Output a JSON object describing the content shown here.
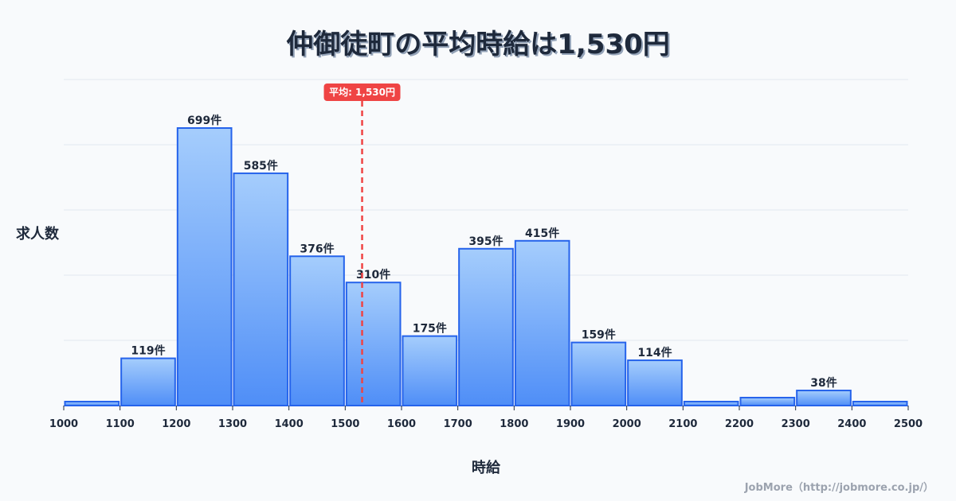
{
  "header": {
    "title": "仲御徒町の平均時給は1,530円"
  },
  "axes": {
    "ylabel": "求人数",
    "xlabel": "時給"
  },
  "average": {
    "label": "平均: 1,530円",
    "value": 1530,
    "color": "#ef4444"
  },
  "credit": "JobMore（http://jobmore.co.jp/）",
  "colors": {
    "bar_top": "#a5cdfc",
    "bar_bottom": "#4f8ef7",
    "bar_stroke": "#2563eb",
    "grid": "#e2e8f0",
    "text": "#1e293b"
  },
  "chart_data": {
    "type": "bar",
    "title": "仲御徒町の平均時給は1,530円",
    "xlabel": "時給",
    "ylabel": "求人数",
    "categories": [
      "1000-1100",
      "1100-1200",
      "1200-1300",
      "1300-1400",
      "1400-1500",
      "1500-1600",
      "1600-1700",
      "1700-1800",
      "1800-1900",
      "1900-2000",
      "2000-2100",
      "2100-2200",
      "2200-2300",
      "2300-2400",
      "2400-2500"
    ],
    "bin_edges": [
      1000,
      1100,
      1200,
      1300,
      1400,
      1500,
      1600,
      1700,
      1800,
      1900,
      2000,
      2100,
      2200,
      2300,
      2400,
      2500
    ],
    "values": [
      10,
      119,
      699,
      585,
      376,
      310,
      175,
      395,
      415,
      159,
      114,
      10,
      20,
      38,
      10
    ],
    "labels": [
      "",
      "119件",
      "699件",
      "585件",
      "376件",
      "310件",
      "175件",
      "395件",
      "415件",
      "159件",
      "114件",
      "",
      "",
      "38件",
      ""
    ],
    "x_ticks": [
      "1000",
      "1100",
      "1200",
      "1300",
      "1400",
      "1500",
      "1600",
      "1700",
      "1800",
      "1900",
      "2000",
      "2100",
      "2200",
      "2300",
      "2400",
      "2500"
    ],
    "xlim": [
      1000,
      2500
    ],
    "ylim": [
      0,
      820
    ],
    "grid": true,
    "average_line": 1530,
    "legend": null
  }
}
